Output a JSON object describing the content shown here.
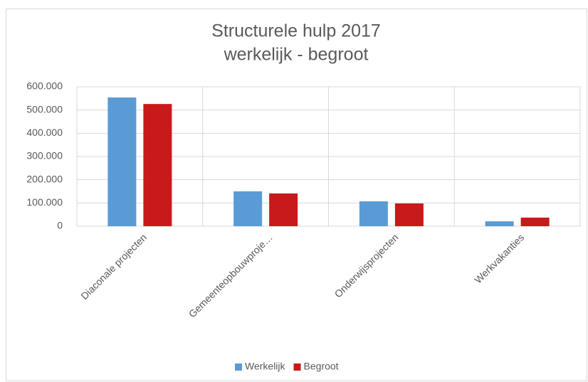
{
  "chart_data": {
    "type": "bar",
    "title": "Structurele hulp 2017",
    "subtitle": "werkelijk - begroot",
    "categories": [
      "Diaconale projecten",
      "Gemeenteopbouwproje…",
      "Onderwijsprojecten",
      "Werkvakanties"
    ],
    "series": [
      {
        "name": "Werkelijk",
        "color": "#5b9bd5",
        "values": [
          554000,
          150000,
          107000,
          21000
        ]
      },
      {
        "name": "Begroot",
        "color": "#c81a1a",
        "values": [
          526000,
          141000,
          98000,
          37000
        ]
      }
    ],
    "ylim": [
      0,
      600000
    ],
    "yticks": [
      0,
      {
        "value": 100000,
        "label": "100.000"
      },
      {
        "value": 200000,
        "label": "200.000"
      },
      {
        "value": 300000,
        "label": "300.000"
      },
      {
        "value": 400000,
        "label": "400.000"
      },
      {
        "value": 500000,
        "label": "500.000"
      },
      {
        "value": 600000,
        "label": "600.000"
      }
    ],
    "grid": true,
    "legend": "bottom"
  }
}
